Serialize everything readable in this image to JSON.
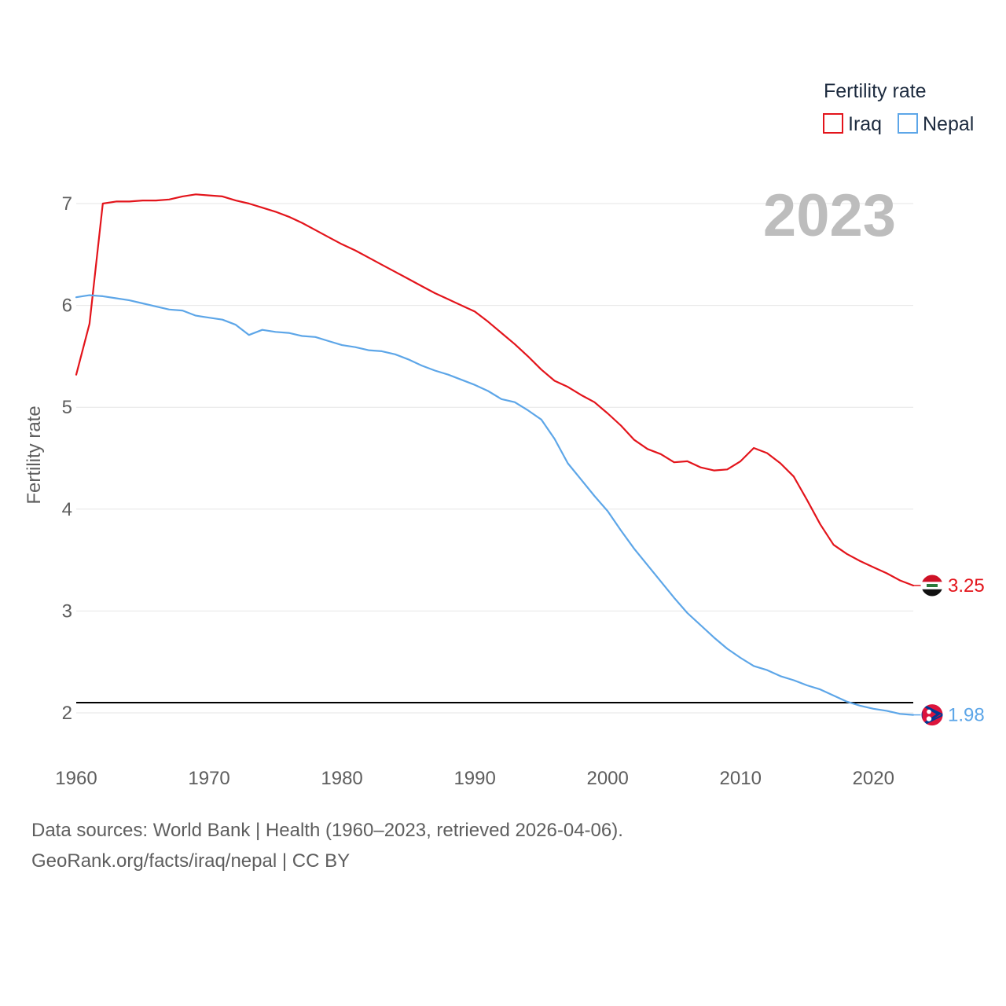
{
  "chart_data": {
    "type": "line",
    "title": "",
    "watermark_year": "2023",
    "ylabel": "Fertility rate",
    "xlabel": "",
    "xlim": [
      1960,
      2023
    ],
    "ylim": [
      1.6,
      7.5
    ],
    "x_ticks": [
      1960,
      1970,
      1980,
      1990,
      2000,
      2010,
      2020
    ],
    "y_ticks": [
      2,
      3,
      4,
      5,
      6,
      7
    ],
    "gridlines": true,
    "reference_line": {
      "value": 2.1
    },
    "legend": {
      "title": "Fertility rate",
      "position": "top-right"
    },
    "x": [
      1960,
      1961,
      1962,
      1963,
      1964,
      1965,
      1966,
      1967,
      1968,
      1969,
      1970,
      1971,
      1972,
      1973,
      1974,
      1975,
      1976,
      1977,
      1978,
      1979,
      1980,
      1981,
      1982,
      1983,
      1984,
      1985,
      1986,
      1987,
      1988,
      1989,
      1990,
      1991,
      1992,
      1993,
      1994,
      1995,
      1996,
      1997,
      1998,
      1999,
      2000,
      2001,
      2002,
      2003,
      2004,
      2005,
      2006,
      2007,
      2008,
      2009,
      2010,
      2011,
      2012,
      2013,
      2014,
      2015,
      2016,
      2017,
      2018,
      2019,
      2020,
      2021,
      2022,
      2023
    ],
    "series": [
      {
        "name": "Iraq",
        "color": "#e3141b",
        "end_label": "3.25",
        "flag": "iraq-flag",
        "values": [
          5.32,
          5.82,
          7.0,
          7.02,
          7.02,
          7.03,
          7.03,
          7.04,
          7.07,
          7.09,
          7.08,
          7.07,
          7.03,
          7.0,
          6.96,
          6.92,
          6.87,
          6.81,
          6.74,
          6.67,
          6.6,
          6.54,
          6.47,
          6.4,
          6.33,
          6.26,
          6.19,
          6.12,
          6.06,
          6.0,
          5.94,
          5.84,
          5.73,
          5.62,
          5.5,
          5.37,
          5.26,
          5.2,
          5.12,
          5.05,
          4.94,
          4.82,
          4.68,
          4.59,
          4.54,
          4.46,
          4.47,
          4.41,
          4.38,
          4.39,
          4.47,
          4.6,
          4.55,
          4.45,
          4.32,
          4.09,
          3.85,
          3.65,
          3.56,
          3.49,
          3.43,
          3.37,
          3.3,
          3.25
        ]
      },
      {
        "name": "Nepal",
        "color": "#5da6e8",
        "end_label": "1.98",
        "flag": "nepal-flag",
        "values": [
          6.08,
          6.1,
          6.09,
          6.07,
          6.05,
          6.02,
          5.99,
          5.96,
          5.95,
          5.9,
          5.88,
          5.86,
          5.81,
          5.71,
          5.76,
          5.74,
          5.73,
          5.7,
          5.69,
          5.65,
          5.61,
          5.59,
          5.56,
          5.55,
          5.52,
          5.47,
          5.41,
          5.36,
          5.32,
          5.27,
          5.22,
          5.16,
          5.08,
          5.05,
          4.97,
          4.88,
          4.69,
          4.45,
          4.29,
          4.13,
          3.98,
          3.79,
          3.61,
          3.45,
          3.29,
          3.13,
          2.98,
          2.86,
          2.74,
          2.63,
          2.54,
          2.46,
          2.42,
          2.36,
          2.32,
          2.27,
          2.23,
          2.17,
          2.11,
          2.07,
          2.04,
          2.02,
          1.99,
          1.98
        ]
      }
    ]
  },
  "footer": {
    "line1": "Data sources: World Bank | Health (1960–2023, retrieved 2026-04-06).",
    "line2": "GeoRank.org/facts/iraq/nepal | CC BY"
  }
}
